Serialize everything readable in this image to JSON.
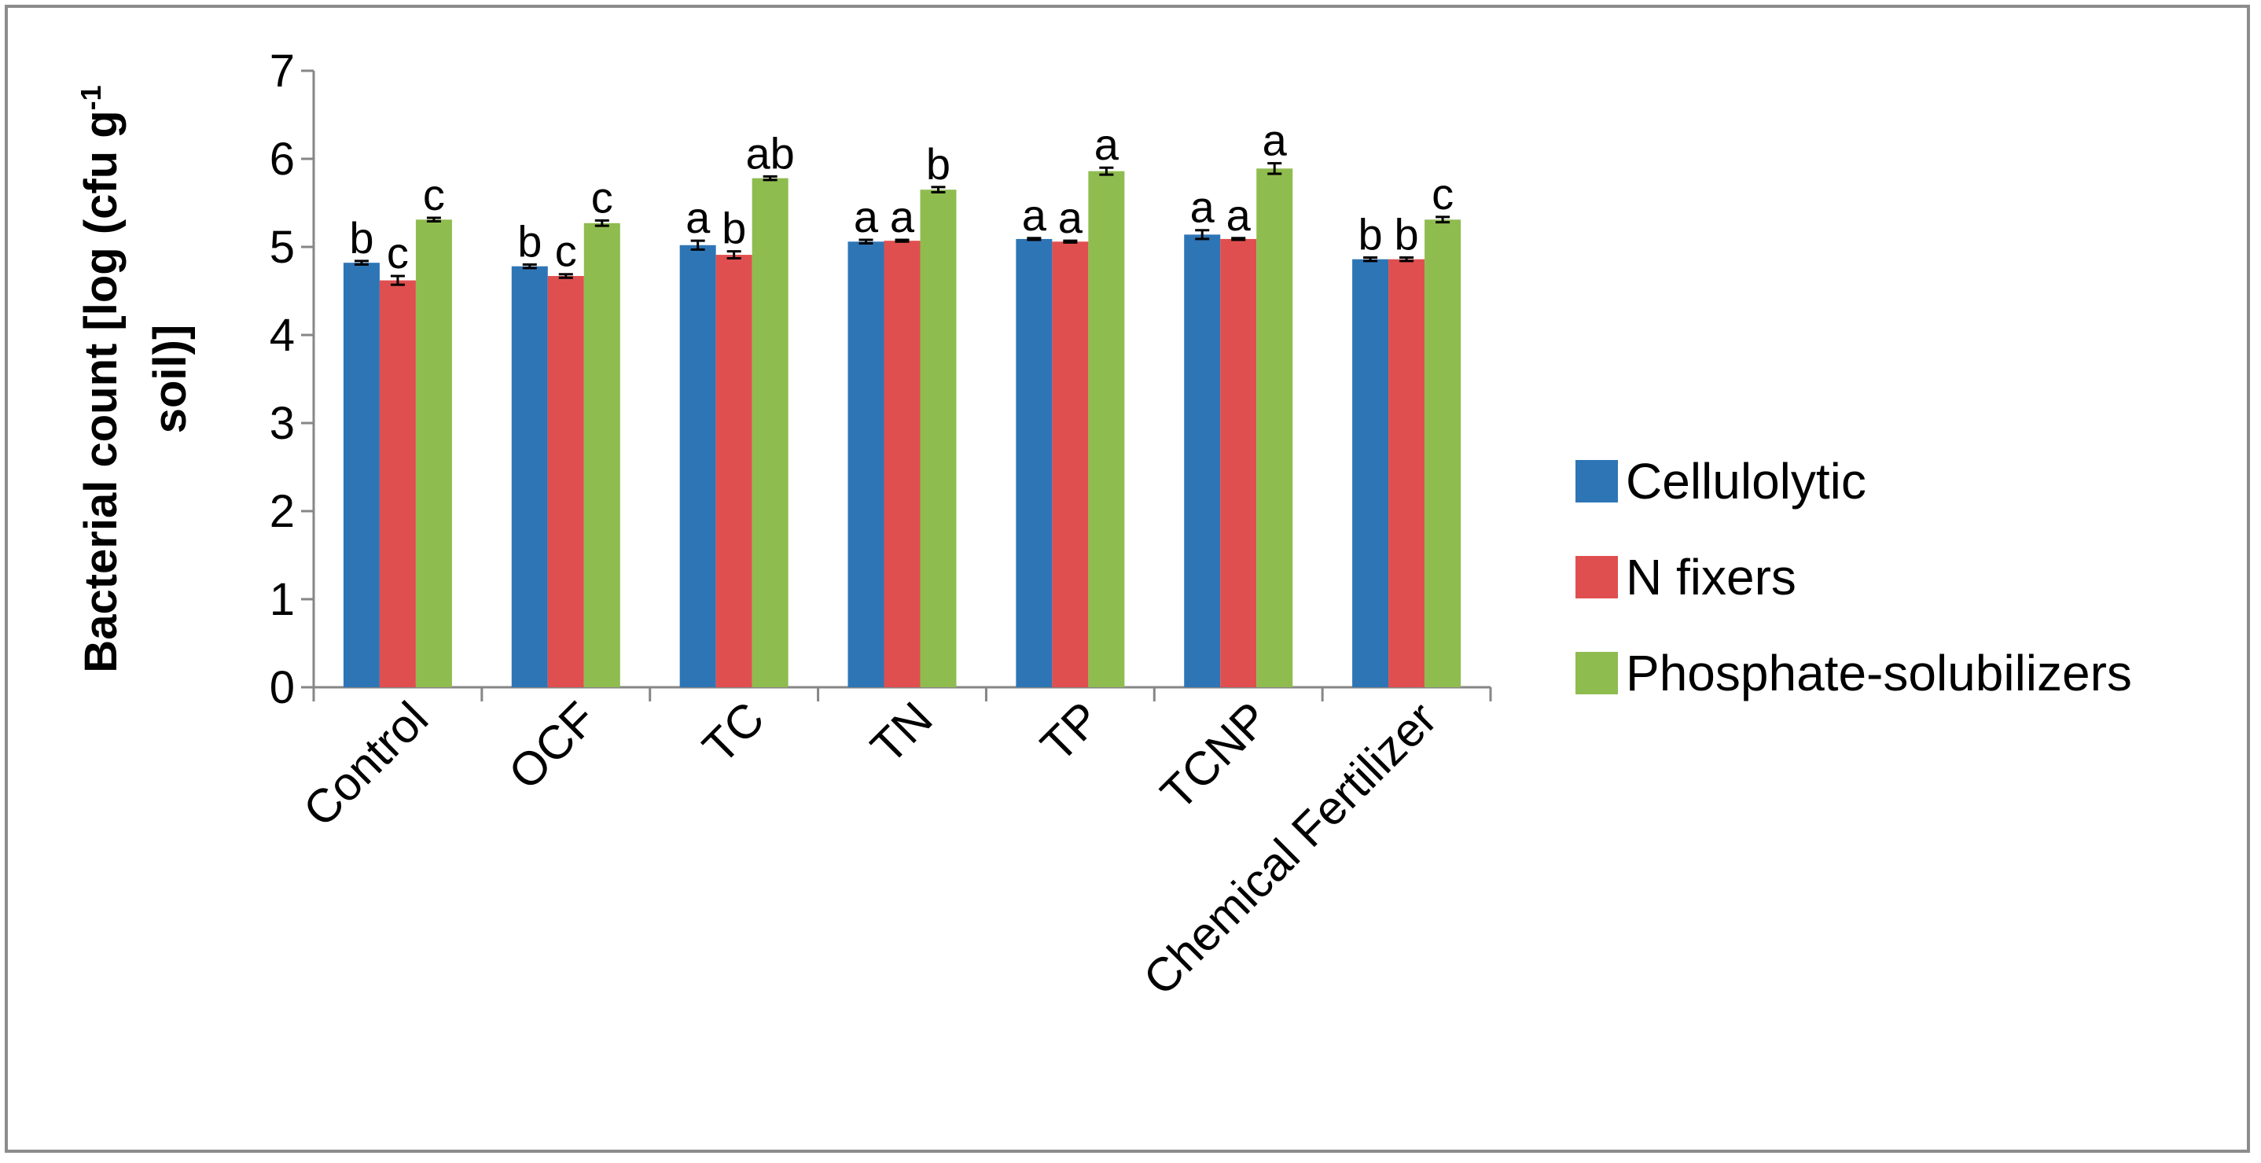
{
  "chart_data": {
    "type": "bar",
    "xlabel": "",
    "ylabel_lines": [
      "Bacterial count [log (cfu g",
      "soil)]"
    ],
    "ylabel_superscript": "-1",
    "ylim": [
      0,
      7
    ],
    "yticks": [
      0,
      1,
      2,
      3,
      4,
      5,
      6,
      7
    ],
    "grid": false,
    "legend_position": "right",
    "categories": [
      "Control",
      "OCF",
      "TC",
      "TN",
      "TP",
      "TCNP",
      "Chemical Fertilizer"
    ],
    "series": [
      {
        "name": "Cellulolytic",
        "color": "#2e75b6",
        "values": [
          4.82,
          4.78,
          5.02,
          5.06,
          5.09,
          5.14,
          4.86
        ],
        "errors": [
          0.02,
          0.02,
          0.05,
          0.02,
          0.01,
          0.05,
          0.02
        ],
        "labels": [
          "b",
          "b",
          "a",
          "a",
          "a",
          "a",
          "b"
        ]
      },
      {
        "name": "N fixers",
        "color": "#e04f4f",
        "values": [
          4.62,
          4.67,
          4.91,
          5.07,
          5.06,
          5.09,
          4.86
        ],
        "errors": [
          0.05,
          0.02,
          0.04,
          0.01,
          0.01,
          0.01,
          0.02
        ],
        "labels": [
          "c",
          "c",
          "b",
          "a",
          "a",
          "a",
          "b"
        ]
      },
      {
        "name": "Phosphate-solubilizers",
        "color": "#8fbc4f",
        "values": [
          5.31,
          5.27,
          5.78,
          5.65,
          5.86,
          5.89,
          5.31
        ],
        "errors": [
          0.02,
          0.03,
          0.02,
          0.03,
          0.04,
          0.06,
          0.03
        ],
        "labels": [
          "c",
          "c",
          "ab",
          "b",
          "a",
          "a",
          "c"
        ]
      }
    ]
  }
}
